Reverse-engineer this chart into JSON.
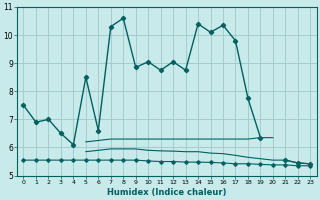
{
  "xlabel": "Humidex (Indice chaleur)",
  "background_color": "#c8eaea",
  "grid_color": "#a0c8c8",
  "line_color": "#006060",
  "x": [
    0,
    1,
    2,
    3,
    4,
    5,
    6,
    7,
    8,
    9,
    10,
    11,
    12,
    13,
    14,
    15,
    16,
    17,
    18,
    19,
    20,
    21,
    22,
    23
  ],
  "line_main": [
    7.5,
    6.9,
    7.0,
    6.5,
    6.1,
    8.5,
    6.6,
    10.3,
    10.6,
    8.85,
    9.05,
    8.75,
    9.05,
    8.75,
    10.4,
    10.1,
    10.35,
    9.8,
    7.75,
    6.35,
    null,
    null,
    null,
    null
  ],
  "line_upper": [
    null,
    null,
    null,
    null,
    null,
    null,
    null,
    null,
    null,
    null,
    null,
    null,
    null,
    null,
    null,
    null,
    null,
    null,
    null,
    null,
    6.35,
    null,
    null,
    null
  ],
  "line_mid1": [
    null,
    null,
    null,
    null,
    null,
    6.2,
    6.25,
    6.3,
    6.3,
    6.3,
    6.3,
    6.3,
    6.3,
    6.3,
    6.3,
    6.3,
    6.3,
    6.3,
    6.3,
    6.35,
    6.35,
    null,
    null,
    null
  ],
  "line_mid2": [
    null,
    null,
    null,
    null,
    null,
    5.85,
    5.9,
    5.95,
    5.95,
    5.95,
    5.9,
    5.88,
    5.87,
    5.85,
    5.85,
    5.8,
    5.78,
    5.72,
    5.65,
    5.6,
    5.55,
    5.55,
    5.45,
    5.42
  ],
  "line_low": [
    5.55,
    5.55,
    5.55,
    5.55,
    5.55,
    5.55,
    5.55,
    5.55,
    5.55,
    5.55,
    5.52,
    5.5,
    5.5,
    5.48,
    5.48,
    5.47,
    5.45,
    5.42,
    5.42,
    5.4,
    5.38,
    5.38,
    5.35,
    5.35
  ],
  "line_right": [
    null,
    null,
    null,
    null,
    null,
    null,
    null,
    null,
    null,
    null,
    null,
    null,
    null,
    null,
    null,
    null,
    null,
    null,
    null,
    null,
    null,
    5.55,
    5.45,
    5.42
  ],
  "ylim": [
    5,
    11
  ],
  "xlim": [
    -0.5,
    23.5
  ],
  "yticks": [
    5,
    6,
    7,
    8,
    9,
    10,
    11
  ],
  "xticks": [
    0,
    1,
    2,
    3,
    4,
    5,
    6,
    7,
    8,
    9,
    10,
    11,
    12,
    13,
    14,
    15,
    16,
    17,
    18,
    19,
    20,
    21,
    22,
    23
  ]
}
